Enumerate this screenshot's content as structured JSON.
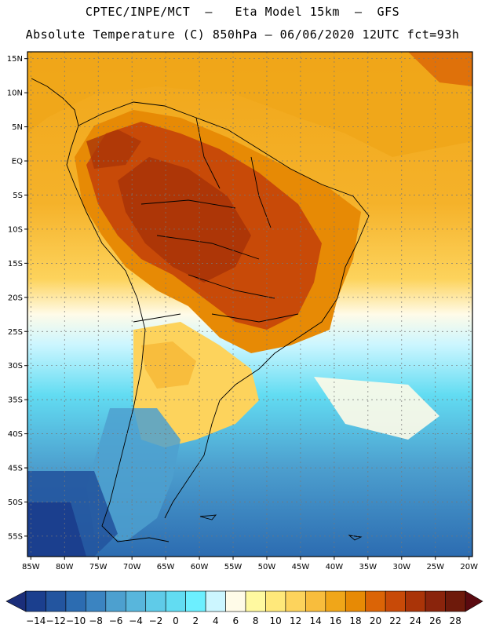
{
  "header": {
    "line1": "CPTEC/INPE/MCT  –   Eta Model 15km  –  GFS",
    "line2": "Absolute Temperature (C) 850hPa – 06/06/2020 12UTC fct=93h"
  },
  "map": {
    "lat_labels": [
      "15N",
      "10N",
      "5N",
      "EQ",
      "5S",
      "10S",
      "15S",
      "20S",
      "25S",
      "30S",
      "35S",
      "40S",
      "45S",
      "50S",
      "55S"
    ],
    "lon_labels": [
      "85W",
      "80W",
      "75W",
      "70W",
      "65W",
      "60W",
      "55W",
      "50W",
      "45W",
      "40W",
      "35W",
      "30W",
      "25W",
      "20W"
    ],
    "lat_values": [
      15,
      10,
      5,
      0,
      -5,
      -10,
      -15,
      -20,
      -25,
      -30,
      -35,
      -40,
      -45,
      -50,
      -55
    ],
    "lon_values": [
      -85,
      -80,
      -75,
      -70,
      -65,
      -60,
      -55,
      -50,
      -45,
      -40,
      -35,
      -30,
      -25,
      -20
    ],
    "extent": {
      "lon_min": -85.5,
      "lon_max": -19.5,
      "lat_min": -58,
      "lat_max": 16
    }
  },
  "colorbar": {
    "labels": [
      "-14",
      "-12",
      "-10",
      "-8",
      "-6",
      "-4",
      "-2",
      "0",
      "2",
      "4",
      "6",
      "8",
      "10",
      "12",
      "14",
      "16",
      "18",
      "20",
      "22",
      "24",
      "26",
      "28"
    ],
    "colors": [
      "#1b3f8e",
      "#23559f",
      "#2c6cb1",
      "#3b84c1",
      "#4da0cf",
      "#58b6dc",
      "#5fcbe8",
      "#62dcf2",
      "#6cefff",
      "#ccf6ff",
      "#fffbe8",
      "#fff9a0",
      "#ffe87a",
      "#fdd35c",
      "#f8bd3d",
      "#f0a619",
      "#e78a05",
      "#db6406",
      "#c84a08",
      "#aa3408",
      "#8a240c",
      "#6e1a0b"
    ],
    "under_color": "#1b2e7a",
    "over_color": "#5a0a10"
  }
}
